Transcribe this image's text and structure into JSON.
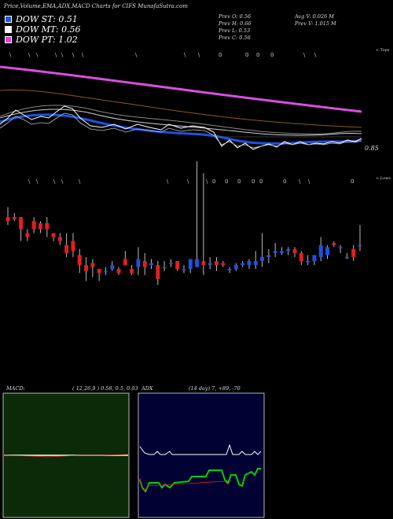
{
  "header": {
    "title": "Price,Volume,EMA,ADX,MACD Charts for CIFS MunafaSutra.com"
  },
  "legend": [
    {
      "name": "DOW ST",
      "value": "0.51",
      "color": "#1e5bd8"
    },
    {
      "name": "DOW MT",
      "value": "0.56",
      "color": "#ffffff"
    },
    {
      "name": "DOW PT",
      "value": "1.02",
      "color": "#e040e0"
    }
  ],
  "prev": {
    "o": "Prev  O: 0.56",
    "h": "Prev  H: 0.66",
    "l": "Prev  L: 0.53",
    "c": "Prev  C: 0.56"
  },
  "avg": {
    "v": "Avg V: 0.026  M",
    "pv": "Prev  V: 1.015 M"
  },
  "price_label": "0.85",
  "edge_top": "< Tops",
  "edge_low": "< Lows",
  "macd": {
    "label": "MACD:",
    "params": "( 12,26,9 ) 0.58,  0.5,  0.03"
  },
  "adx": {
    "label": "ADX",
    "params": "(14  day) 7,  +89,  -70"
  },
  "colors": {
    "up": "#2050e0",
    "down": "#e02020",
    "ema_long": "#d84fe0",
    "bg_macd": "#0b2a08",
    "bg_adx": "#000033"
  },
  "chart_data": {
    "type": "candlestick",
    "candles": [
      {
        "o": 0.7,
        "h": 0.75,
        "l": 0.66,
        "c": 0.68
      },
      {
        "o": 0.7,
        "h": 0.72,
        "l": 0.68,
        "c": 0.69
      },
      {
        "o": 0.7,
        "h": 0.7,
        "l": 0.58,
        "c": 0.64
      },
      {
        "o": 0.62,
        "h": 0.64,
        "l": 0.58,
        "c": 0.6
      },
      {
        "o": 0.68,
        "h": 0.7,
        "l": 0.62,
        "c": 0.64
      },
      {
        "o": 0.67,
        "h": 0.68,
        "l": 0.62,
        "c": 0.64
      },
      {
        "o": 0.67,
        "h": 0.7,
        "l": 0.6,
        "c": 0.64
      },
      {
        "o": 0.62,
        "h": 0.62,
        "l": 0.58,
        "c": 0.6
      },
      {
        "o": 0.6,
        "h": 0.62,
        "l": 0.56,
        "c": 0.58
      },
      {
        "o": 0.56,
        "h": 0.62,
        "l": 0.5,
        "c": 0.52
      },
      {
        "o": 0.58,
        "h": 0.62,
        "l": 0.5,
        "c": 0.53
      },
      {
        "o": 0.51,
        "h": 0.54,
        "l": 0.42,
        "c": 0.46
      },
      {
        "o": 0.46,
        "h": 0.5,
        "l": 0.38,
        "c": 0.43
      },
      {
        "o": 0.47,
        "h": 0.49,
        "l": 0.4,
        "c": 0.45
      },
      {
        "o": 0.44,
        "h": 0.44,
        "l": 0.38,
        "c": 0.42
      },
      {
        "o": 0.43,
        "h": 0.45,
        "l": 0.41,
        "c": 0.43
      },
      {
        "o": 0.44,
        "h": 0.48,
        "l": 0.43,
        "c": 0.46
      },
      {
        "o": 0.44,
        "h": 0.45,
        "l": 0.41,
        "c": 0.42
      },
      {
        "o": 0.49,
        "h": 0.53,
        "l": 0.46,
        "c": 0.46
      },
      {
        "o": 0.44,
        "h": 0.46,
        "l": 0.41,
        "c": 0.42
      },
      {
        "o": 0.45,
        "h": 0.55,
        "l": 0.41,
        "c": 0.49
      },
      {
        "o": 0.48,
        "h": 0.52,
        "l": 0.41,
        "c": 0.45
      },
      {
        "o": 0.46,
        "h": 0.49,
        "l": 0.44,
        "c": 0.47
      },
      {
        "o": 0.46,
        "h": 0.48,
        "l": 0.36,
        "c": 0.39
      },
      {
        "o": 0.45,
        "h": 0.48,
        "l": 0.43,
        "c": 0.45
      },
      {
        "o": 0.47,
        "h": 0.49,
        "l": 0.45,
        "c": 0.47
      },
      {
        "o": 0.48,
        "h": 0.48,
        "l": 0.43,
        "c": 0.44
      },
      {
        "o": 0.44,
        "h": 0.46,
        "l": 0.42,
        "c": 0.44
      },
      {
        "o": 0.44,
        "h": 0.49,
        "l": 0.42,
        "c": 0.49
      },
      {
        "o": 0.45,
        "h": 0.98,
        "l": 0.45,
        "c": 0.49
      },
      {
        "o": 0.48,
        "h": 0.92,
        "l": 0.41,
        "c": 0.46
      },
      {
        "o": 0.46,
        "h": 0.5,
        "l": 0.44,
        "c": 0.47
      },
      {
        "o": 0.48,
        "h": 0.5,
        "l": 0.43,
        "c": 0.46
      },
      {
        "o": 0.47,
        "h": 0.48,
        "l": 0.45,
        "c": 0.46
      },
      {
        "o": 0.44,
        "h": 0.45,
        "l": 0.42,
        "c": 0.44
      },
      {
        "o": 0.44,
        "h": 0.47,
        "l": 0.43,
        "c": 0.46
      },
      {
        "o": 0.46,
        "h": 0.48,
        "l": 0.45,
        "c": 0.47
      },
      {
        "o": 0.46,
        "h": 0.49,
        "l": 0.44,
        "c": 0.48
      },
      {
        "o": 0.46,
        "h": 0.53,
        "l": 0.44,
        "c": 0.48
      },
      {
        "o": 0.48,
        "h": 0.62,
        "l": 0.45,
        "c": 0.5
      },
      {
        "o": 0.5,
        "h": 0.54,
        "l": 0.47,
        "c": 0.51
      },
      {
        "o": 0.52,
        "h": 0.57,
        "l": 0.5,
        "c": 0.53
      },
      {
        "o": 0.52,
        "h": 0.55,
        "l": 0.51,
        "c": 0.53
      },
      {
        "o": 0.53,
        "h": 0.55,
        "l": 0.51,
        "c": 0.54
      },
      {
        "o": 0.54,
        "h": 0.55,
        "l": 0.5,
        "c": 0.52
      },
      {
        "o": 0.52,
        "h": 0.53,
        "l": 0.46,
        "c": 0.48
      },
      {
        "o": 0.48,
        "h": 0.51,
        "l": 0.46,
        "c": 0.48
      },
      {
        "o": 0.48,
        "h": 0.51,
        "l": 0.46,
        "c": 0.51
      },
      {
        "o": 0.5,
        "h": 0.6,
        "l": 0.48,
        "c": 0.56
      },
      {
        "o": 0.51,
        "h": 0.56,
        "l": 0.49,
        "c": 0.55
      },
      {
        "o": 0.57,
        "h": 0.58,
        "l": 0.55,
        "c": 0.56
      },
      {
        "o": 0.55,
        "h": 0.56,
        "l": 0.52,
        "c": 0.55
      },
      {
        "o": 0.5,
        "h": 0.52,
        "l": 0.49,
        "c": 0.5
      },
      {
        "o": 0.54,
        "h": 0.56,
        "l": 0.48,
        "c": 0.5
      },
      {
        "o": 0.56,
        "h": 0.66,
        "l": 0.53,
        "c": 0.56
      }
    ],
    "macd_series": {
      "macd": 0.58,
      "signal": 0.5,
      "hist": 0.03
    },
    "adx_series": {
      "adx": 7,
      "plus_di": 89,
      "minus_di": 70
    }
  }
}
